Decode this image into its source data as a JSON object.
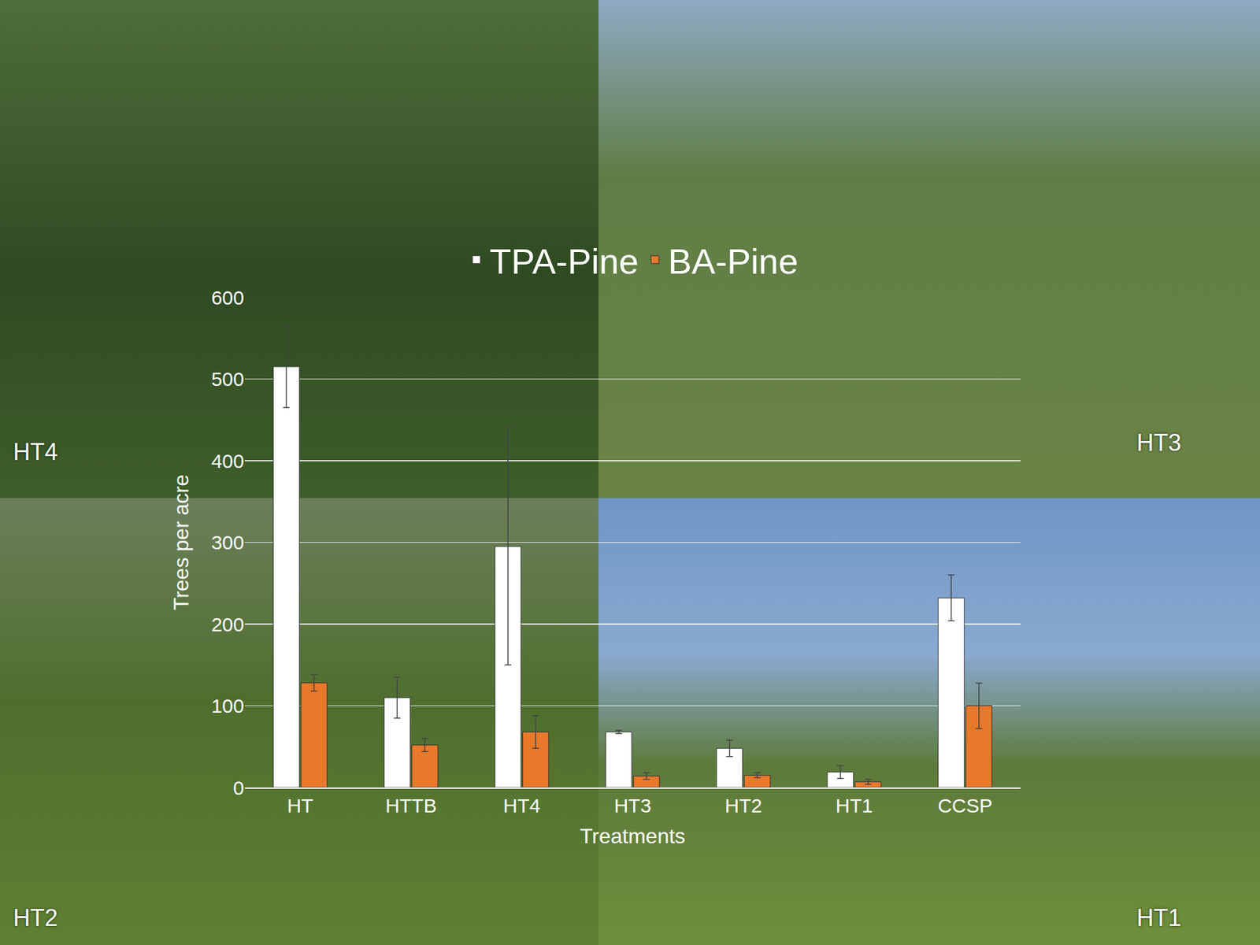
{
  "chart_data": {
    "type": "bar",
    "x_label": "Treatments",
    "y_label": "Trees per acre",
    "categories": [
      "HT",
      "HTTB",
      "HT4",
      "HT3",
      "HT2",
      "HT1",
      "CCSP"
    ],
    "series": [
      {
        "name": "TPA-Pine",
        "color": "#ffffff",
        "values": [
          515,
          110,
          295,
          68,
          48,
          19,
          232
        ],
        "errors": [
          50,
          25,
          145,
          2,
          10,
          8,
          28
        ]
      },
      {
        "name": "BA-Pine",
        "color": "#e8782a",
        "values": [
          128,
          52,
          68,
          14,
          15,
          7,
          100
        ],
        "errors": [
          10,
          8,
          20,
          4,
          3,
          3,
          28
        ]
      }
    ],
    "ylim": [
      0,
      600
    ],
    "yticks": [
      0,
      100,
      200,
      300,
      400,
      500,
      600
    ],
    "grid": true,
    "legend": "top",
    "annotations": [
      "HT4",
      "HT3",
      "HT2",
      "HT1"
    ]
  }
}
